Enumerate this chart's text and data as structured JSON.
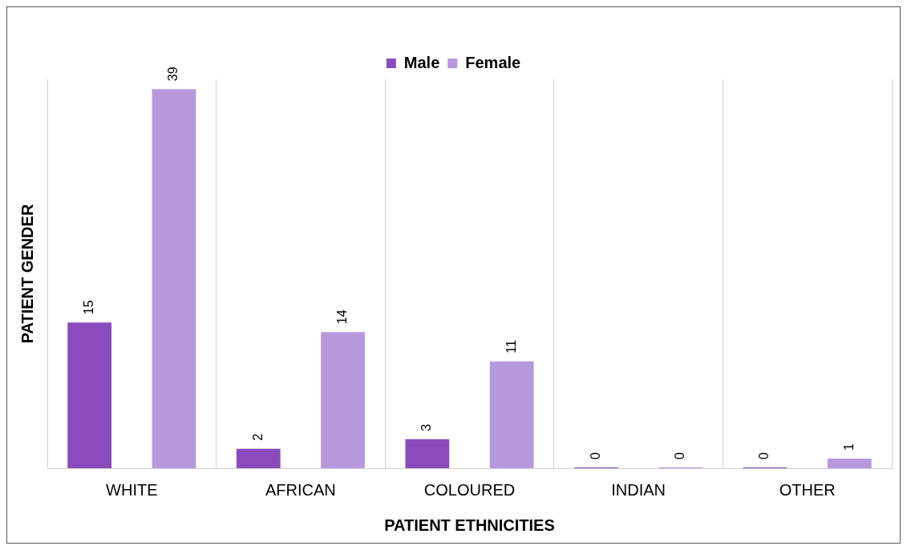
{
  "chart_data": {
    "type": "bar",
    "xlabel": "PATIENT ETHNICITIES",
    "ylabel": "PATIENT GENDER",
    "categories": [
      "WHITE",
      "AFRICAN",
      "COLOURED",
      "INDIAN",
      "OTHER"
    ],
    "series": [
      {
        "name": "Male",
        "color": "#8a4cbc",
        "values": [
          15,
          2,
          3,
          0,
          0
        ]
      },
      {
        "name": "Female",
        "color": "#b898dd",
        "values": [
          39,
          14,
          11,
          0,
          1
        ]
      }
    ],
    "data_labels": true,
    "grid": "x",
    "legend": "top"
  }
}
